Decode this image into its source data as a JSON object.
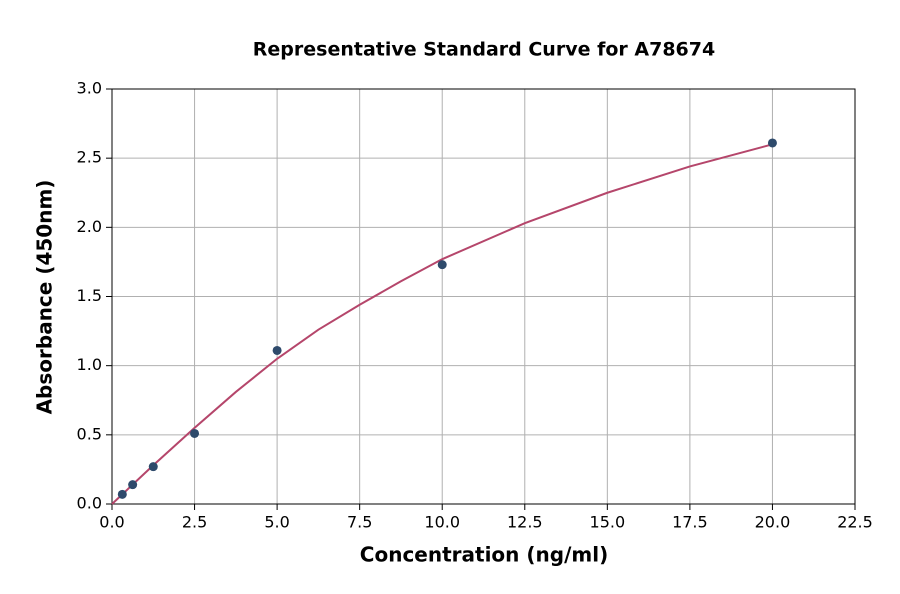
{
  "chart_data": {
    "type": "scatter",
    "title": "Representative Standard Curve for A78674",
    "x_label": "Concentration (ng/ml)",
    "y_label": "Absorbance (450nm)",
    "x": [
      0.3125,
      0.625,
      1.25,
      2.5,
      5,
      10,
      20
    ],
    "values": [
      0.07,
      0.14,
      0.27,
      0.51,
      1.11,
      1.73,
      2.61
    ],
    "color": "#2e4a6b",
    "fit": {
      "x": [
        0,
        1.25,
        2.5,
        3.75,
        5,
        6.25,
        7.5,
        8.75,
        10,
        12.5,
        15,
        17.5,
        20
      ],
      "values": [
        0,
        0.28,
        0.55,
        0.81,
        1.05,
        1.26,
        1.44,
        1.61,
        1.77,
        2.03,
        2.25,
        2.44,
        2.6
      ],
      "color": "#b5466b"
    },
    "xlim": [
      0,
      22.5
    ],
    "ylim": [
      0,
      3
    ],
    "xticks": [
      {
        "value": 0,
        "label": "0.0"
      },
      2.5,
      {
        "value": 5,
        "label": "5.0"
      },
      7.5,
      {
        "value": 10,
        "label": "10.0"
      },
      12.5,
      {
        "value": 15,
        "label": "15.0"
      },
      17.5,
      {
        "value": 20,
        "label": "20.0"
      },
      22.5
    ],
    "yticks": [
      {
        "value": 0,
        "label": "0.0"
      },
      0.5,
      {
        "value": 1,
        "label": "1.0"
      },
      1.5,
      {
        "value": 2,
        "label": "2.0"
      },
      2.5,
      {
        "value": 3,
        "label": "3.0"
      }
    ],
    "grid": true
  }
}
